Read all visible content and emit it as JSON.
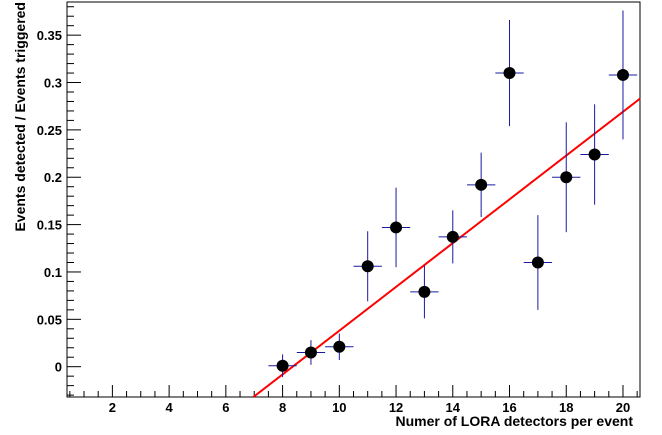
{
  "chart_data": {
    "type": "scatter",
    "xlabel": "Numer of LORA detectors per event",
    "ylabel": "Events detected / Events triggered",
    "xlim": [
      0.4,
      20.6
    ],
    "ylim": [
      -0.032,
      0.385
    ],
    "x_ticks": [
      2,
      4,
      6,
      8,
      10,
      12,
      14,
      16,
      18,
      20
    ],
    "x_tick_labels": [
      "2",
      "4",
      "6",
      "8",
      "10",
      "12",
      "14",
      "16",
      "18",
      "20"
    ],
    "y_ticks": [
      0,
      0.05,
      0.1,
      0.15,
      0.2,
      0.25,
      0.3,
      0.35
    ],
    "y_tick_labels": [
      "0",
      "0.05",
      "0.1",
      "0.15",
      "0.2",
      "0.25",
      "0.3",
      "0.35"
    ],
    "grid": false,
    "legend": "none",
    "series": [
      {
        "x": [
          8,
          9,
          10,
          11,
          12,
          13,
          14,
          15,
          16,
          17,
          18,
          19,
          20
        ],
        "y": [
          0.001,
          0.015,
          0.021,
          0.106,
          0.147,
          0.079,
          0.137,
          0.192,
          0.31,
          0.11,
          0.2,
          0.224,
          0.308
        ],
        "y_err": [
          0.012,
          0.013,
          0.014,
          0.037,
          0.042,
          0.028,
          0.028,
          0.034,
          0.056,
          0.05,
          0.058,
          0.053,
          0.068
        ],
        "x_err": 0.5,
        "marker_color": "#000000",
        "error_bar_color": "#1a1aa0"
      }
    ],
    "fit_line": {
      "color": "#ff0000",
      "x": [
        6.97,
        20.6
      ],
      "y": [
        -0.032,
        0.283
      ]
    }
  }
}
